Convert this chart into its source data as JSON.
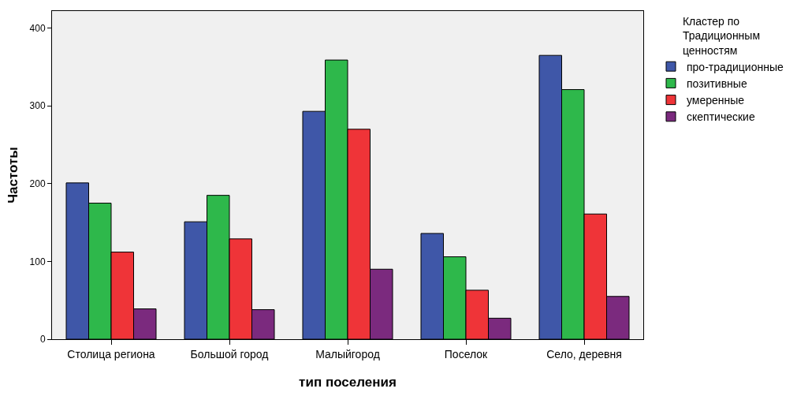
{
  "chart_data": {
    "type": "bar",
    "xlabel": "тип поселения",
    "ylabel": "Частоты",
    "legend_title": "Кластер по Традиционным ценностям",
    "legend": "right",
    "categories": [
      "Столица региона",
      "Большой город",
      "Малыйгород",
      "Поселок",
      "Село, деревня"
    ],
    "series": [
      {
        "name": "про-традиционные",
        "color": "#3f57a8",
        "values": [
          201,
          151,
          293,
          136,
          365
        ]
      },
      {
        "name": "позитивные",
        "color": "#2eb84b",
        "values": [
          175,
          185,
          359,
          106,
          321
        ]
      },
      {
        "name": "умеренные",
        "color": "#ef3438",
        "values": [
          112,
          129,
          270,
          63,
          161
        ]
      },
      {
        "name": "скептические",
        "color": "#7b2a7e",
        "values": [
          39,
          38,
          90,
          27,
          55
        ]
      }
    ],
    "ylim": [
      0,
      422
    ],
    "yticks": [
      0,
      100,
      200,
      300,
      400
    ],
    "grid": false
  }
}
